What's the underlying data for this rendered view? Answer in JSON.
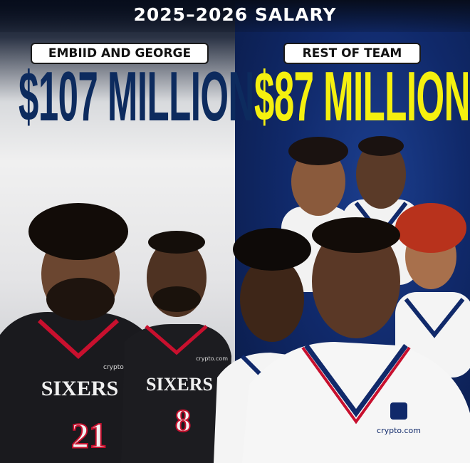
{
  "header": {
    "title": "2025–2026 SALARY"
  },
  "left": {
    "label": "EMBIID AND GEORGE",
    "amount": "$107 MILLION",
    "amount_color": "#0d2b5e"
  },
  "right": {
    "label": "REST OF TEAM",
    "amount": "$87 MILLION",
    "amount_color": "#f5f00f"
  },
  "jerseys": {
    "team_wordmark": "SIXERS",
    "numbers": [
      "21",
      "8"
    ],
    "sponsor": "crypto.com"
  },
  "colors": {
    "navy": "#10296a",
    "red": "#c8102e",
    "white": "#ffffff"
  }
}
